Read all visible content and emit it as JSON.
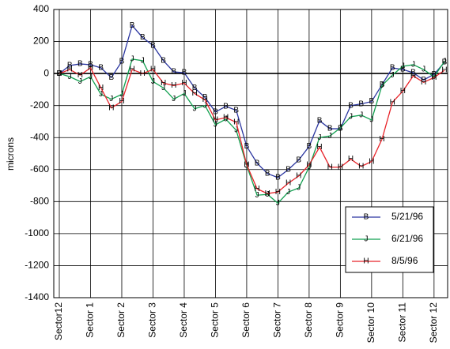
{
  "chart_data": {
    "type": "line",
    "y_label": "microns",
    "categories": [
      "Sector12",
      null,
      null,
      "Sector 1",
      null,
      null,
      "Sector 2",
      null,
      null,
      "Sector 3",
      null,
      null,
      "Sector 4",
      null,
      null,
      "Sector 5",
      null,
      null,
      "Sector 6",
      null,
      null,
      "Sector 7",
      null,
      null,
      "Sector 8",
      null,
      null,
      "Sector 9",
      null,
      null,
      "Sector 10",
      null,
      null,
      "Sector 11",
      null,
      null,
      "Sector 12",
      null
    ],
    "series": [
      {
        "name": "5/21/96",
        "marker": "B",
        "color": "#2a35a0",
        "values": [
          0,
          50,
          60,
          55,
          35,
          -25,
          75,
          300,
          225,
          175,
          80,
          10,
          5,
          -90,
          -150,
          -240,
          -205,
          -230,
          -455,
          -560,
          -625,
          -650,
          -600,
          -540,
          -455,
          -295,
          -345,
          -345,
          -200,
          -190,
          -175,
          -70,
          35,
          25,
          5,
          -40,
          -5,
          70
        ]
      },
      {
        "name": "6/21/96",
        "marker": "J",
        "color": "#12a050",
        "values": [
          0,
          -20,
          -50,
          -20,
          -130,
          -160,
          -130,
          90,
          80,
          -50,
          -90,
          -160,
          -125,
          -220,
          -200,
          -320,
          -285,
          -355,
          -575,
          -760,
          -755,
          -810,
          -740,
          -715,
          -585,
          -400,
          -390,
          -340,
          -270,
          -260,
          -290,
          -75,
          -10,
          45,
          55,
          25,
          -20,
          75
        ]
      },
      {
        "name": "8/5/96",
        "marker": "H",
        "color": "#e8242a",
        "values": [
          0,
          25,
          -10,
          35,
          -90,
          -215,
          -175,
          25,
          0,
          25,
          -60,
          -75,
          -60,
          -125,
          -165,
          -290,
          -275,
          -305,
          -570,
          -720,
          -750,
          -740,
          -685,
          -640,
          -570,
          -460,
          -585,
          -585,
          -535,
          -580,
          -550,
          -410,
          -180,
          -110,
          -15,
          -55,
          -25,
          20
        ]
      }
    ],
    "ylim": [
      -1400,
      400
    ],
    "yticks": [
      400,
      200,
      0,
      -200,
      -400,
      -600,
      -800,
      -1000,
      -1200,
      -1400
    ],
    "grid": true,
    "legend": "lower-right"
  }
}
